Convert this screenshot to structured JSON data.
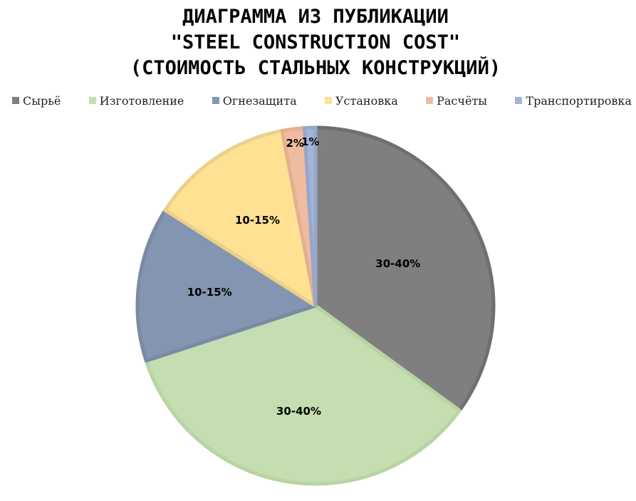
{
  "chart_data": {
    "type": "pie",
    "title": [
      "ДИАГРАММА ИЗ ПУБЛИКАЦИИ",
      "\"STEEL CONSTRUCTION COST\"",
      "(СТОИМОСТЬ СТАЛЬНЫХ КОНСТРУКЦИЙ)"
    ],
    "legend_position": "top",
    "categories": [
      "Сырьё",
      "Изготовление",
      "Огнезащита",
      "Установка",
      "Расчёты",
      "Транспортировка"
    ],
    "values": [
      35,
      35,
      14,
      13,
      2,
      1
    ],
    "data_labels": [
      "30-40%",
      "30-40%",
      "10-15%",
      "10-15%",
      "2%",
      "1%"
    ],
    "colors": [
      "#7f7f7f",
      "#c4deb1",
      "#8495b1",
      "#ffe194",
      "#f0bc9f",
      "#a3b4d7"
    ],
    "edge_colors": [
      "#6f6f6f",
      "#b8d4a2",
      "#7a8aa6",
      "#ebd08c",
      "#e4b090",
      "#97a8cb"
    ]
  }
}
